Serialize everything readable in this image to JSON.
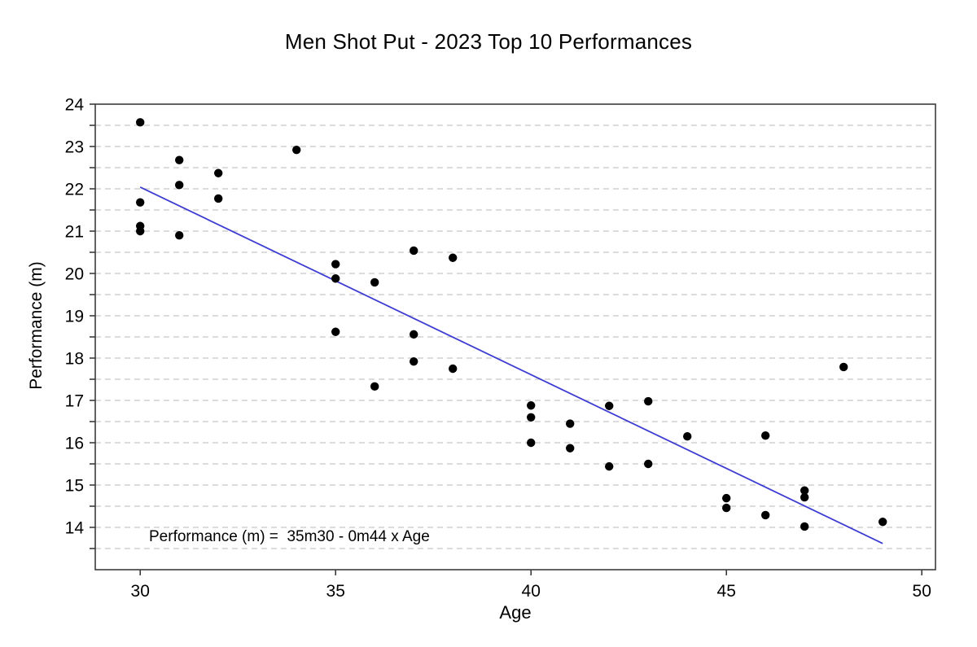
{
  "page": {
    "title": "Men Shot Put - 2023 Top 10 Performances"
  },
  "chart_data": {
    "type": "scatter",
    "title": "Men Shot Put - 2023 Top 10 Performances",
    "xlabel": "Age",
    "ylabel": "Performance (m)",
    "annotation": "Performance (m) =  35m30 - 0m44 x Age",
    "x_domain": [
      28.85,
      50.35
    ],
    "y_domain": [
      13,
      24
    ],
    "x_ticks": [
      30,
      35,
      40,
      45,
      50
    ],
    "y_tick_step": 0.5,
    "y_labeled_ticks": [
      14,
      15,
      16,
      17,
      18,
      19,
      20,
      21,
      22,
      23,
      24
    ],
    "grid": "horizontal-dashed-every-0.5",
    "legend": "none",
    "points": [
      [
        30,
        23.57
      ],
      [
        30,
        21.68
      ],
      [
        30,
        21.12
      ],
      [
        30,
        21.0
      ],
      [
        31,
        22.68
      ],
      [
        31,
        22.09
      ],
      [
        31,
        20.9
      ],
      [
        32,
        22.37
      ],
      [
        32,
        21.77
      ],
      [
        34,
        22.92
      ],
      [
        35,
        20.22
      ],
      [
        35,
        19.88
      ],
      [
        35,
        18.62
      ],
      [
        36,
        19.79
      ],
      [
        36,
        17.33
      ],
      [
        37,
        20.54
      ],
      [
        37,
        18.56
      ],
      [
        37,
        17.92
      ],
      [
        38,
        20.37
      ],
      [
        38,
        17.75
      ],
      [
        40,
        16.88
      ],
      [
        40,
        16.6
      ],
      [
        40,
        16.0
      ],
      [
        41,
        16.45
      ],
      [
        41,
        15.87
      ],
      [
        42,
        16.87
      ],
      [
        42,
        15.44
      ],
      [
        43,
        16.98
      ],
      [
        43,
        15.5
      ],
      [
        44,
        16.15
      ],
      [
        45,
        14.69
      ],
      [
        45,
        14.46
      ],
      [
        46,
        16.17
      ],
      [
        46,
        14.29
      ],
      [
        47,
        14.87
      ],
      [
        47,
        14.71
      ],
      [
        47,
        14.02
      ],
      [
        48,
        17.79
      ],
      [
        49,
        14.13
      ]
    ],
    "regression_line": {
      "x1": 30,
      "y1": 22.04,
      "x2": 49,
      "y2": 13.62,
      "intercept_m": 35.3,
      "slope_m_per_year": -0.44
    },
    "colors": {
      "point": "#000000",
      "line": "#3d3dd3",
      "grid": "#c8c8c8",
      "frame": "#3c3c3c",
      "text": "#000000"
    }
  }
}
